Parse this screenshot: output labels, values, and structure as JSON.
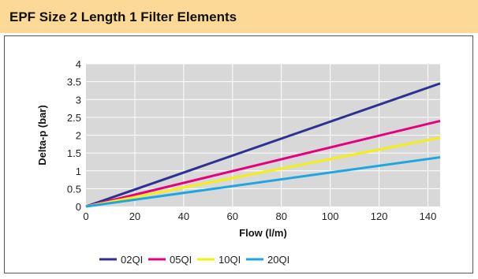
{
  "header": {
    "title": "EPF Size 2 Length 1 Filter Elements"
  },
  "colors": {
    "header_bg": "#fcd997",
    "plot_bg": "#d8d8d8",
    "grid": "#ffffff"
  },
  "chart_data": {
    "type": "line",
    "title": "",
    "xlabel": "Flow (l/m)",
    "ylabel": "Delta-p (bar)",
    "xlim": [
      0,
      145
    ],
    "ylim": [
      0,
      4
    ],
    "xticks": [
      "0",
      "20",
      "40",
      "60",
      "80",
      "100",
      "120",
      "140"
    ],
    "yticks": [
      "0",
      "0.5",
      "1",
      "1.5",
      "2",
      "2.5",
      "3",
      "3.5",
      "4"
    ],
    "xtick_values": [
      0,
      20,
      40,
      60,
      80,
      100,
      120,
      140
    ],
    "ytick_values": [
      0,
      0.5,
      1,
      1.5,
      2,
      2.5,
      3,
      3.5,
      4
    ],
    "grid": true,
    "legend_position": "bottom-left",
    "series": [
      {
        "name": "02QI",
        "color": "#2e3192",
        "x": [
          0,
          145
        ],
        "y": [
          0,
          3.45
        ]
      },
      {
        "name": "05QI",
        "color": "#e6007e",
        "x": [
          0,
          145
        ],
        "y": [
          0,
          2.4
        ]
      },
      {
        "name": "10QI",
        "color": "#f5ee14",
        "x": [
          0,
          145
        ],
        "y": [
          0,
          1.93
        ]
      },
      {
        "name": "20QI",
        "color": "#1ea6e0",
        "x": [
          0,
          145
        ],
        "y": [
          0,
          1.38
        ]
      }
    ]
  }
}
